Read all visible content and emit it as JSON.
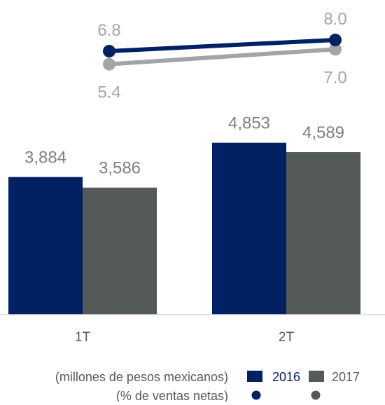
{
  "chart_data": {
    "type": "bar",
    "categories": [
      "1T",
      "2T"
    ],
    "series": [
      {
        "name": "2016",
        "values": [
          3884,
          4853
        ]
      },
      {
        "name": "2017",
        "values": [
          3586,
          4589
        ]
      }
    ],
    "bar_value_labels": [
      [
        "3,884",
        "4,853"
      ],
      [
        "3,586",
        "4,589"
      ]
    ],
    "line_series": [
      {
        "name": "2016",
        "values": [
          6.8,
          8.0
        ]
      },
      {
        "name": "2017",
        "values": [
          5.4,
          7.0
        ]
      }
    ],
    "line_value_labels": [
      [
        "6.8",
        "8.0"
      ],
      [
        "5.4",
        "7.0"
      ]
    ],
    "bar_unit_label": "(millones de pesos mexicanos)",
    "line_unit_label": "(% de ventas netas)",
    "legend": {
      "items": [
        "2016",
        "2017"
      ],
      "position": "bottom-right"
    },
    "colors": {
      "2016": "#022162",
      "2017_bar": "#535a58",
      "2017_line": "#a2a5a7",
      "text": "#555b5a"
    },
    "ylim": [
      0,
      5500
    ],
    "line_ylim": [
      4.5,
      8.5
    ],
    "grid": false
  }
}
